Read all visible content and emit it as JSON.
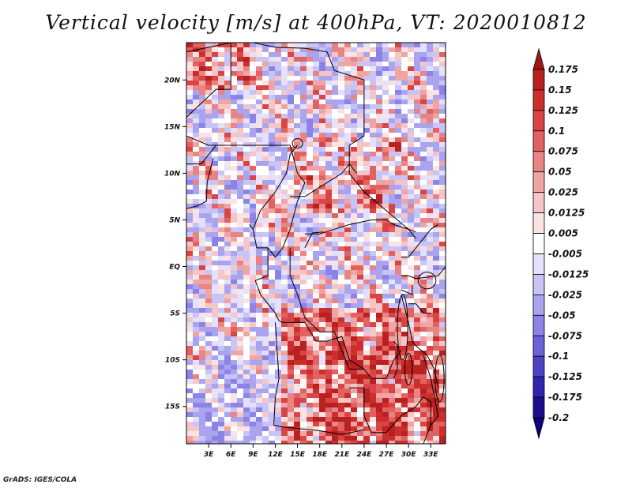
{
  "footer": "GrADS: IGES/COLA",
  "chart_data": {
    "type": "heatmap",
    "title": "Vertical velocity [m/s] at 400hPa, VT: 2020010812",
    "variable": "Vertical velocity",
    "units": "m/s",
    "level": "400hPa",
    "valid_time": "2020010812",
    "xlabel": "",
    "ylabel": "",
    "xlim": [
      0,
      35
    ],
    "ylim": [
      -19,
      24
    ],
    "x_ticks": [
      {
        "value": 3,
        "label": "3E"
      },
      {
        "value": 6,
        "label": "6E"
      },
      {
        "value": 9,
        "label": "9E"
      },
      {
        "value": 12,
        "label": "12E"
      },
      {
        "value": 15,
        "label": "15E"
      },
      {
        "value": 18,
        "label": "18E"
      },
      {
        "value": 21,
        "label": "21E"
      },
      {
        "value": 24,
        "label": "24E"
      },
      {
        "value": 27,
        "label": "27E"
      },
      {
        "value": 30,
        "label": "30E"
      },
      {
        "value": 33,
        "label": "33E"
      }
    ],
    "y_ticks": [
      {
        "value": 20,
        "label": "20N"
      },
      {
        "value": 15,
        "label": "15N"
      },
      {
        "value": 10,
        "label": "10N"
      },
      {
        "value": 5,
        "label": "5N"
      },
      {
        "value": 0,
        "label": "EQ"
      },
      {
        "value": -5,
        "label": "5S"
      },
      {
        "value": -10,
        "label": "10S"
      },
      {
        "value": -15,
        "label": "15S"
      }
    ],
    "colorbar": {
      "levels": [
        "0.175",
        "0.15",
        "0.125",
        "0.1",
        "0.075",
        "0.05",
        "0.025",
        "0.0125",
        "0.005",
        "-0.005",
        "-0.0125",
        "-0.025",
        "-0.05",
        "-0.075",
        "-0.1",
        "-0.125",
        "-0.175",
        "-0.2"
      ],
      "colors": [
        "#a01616",
        "#b92020",
        "#cc2e2e",
        "#d94545",
        "#e26262",
        "#e98484",
        "#f0a5a5",
        "#f6c6c6",
        "#fbe3e3",
        "#ffffff",
        "#e3e1fb",
        "#c8c4f5",
        "#aaa4ee",
        "#8b83e5",
        "#6c62d8",
        "#4d42c6",
        "#3124ae",
        "#1c0f90",
        "#110080"
      ]
    }
  }
}
